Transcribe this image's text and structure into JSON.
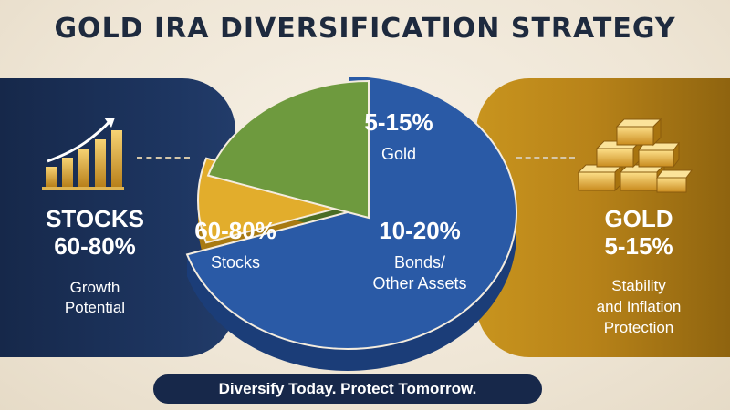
{
  "title": "GOLD IRA DIVERSIFICATION STRATEGY",
  "left_panel": {
    "title_line1": "STOCKS",
    "title_line2": "60-80%",
    "sub_line1": "Growth",
    "sub_line2": "Potential"
  },
  "right_panel": {
    "title_line1": "GOLD",
    "title_line2": "5-15%",
    "sub_line1": "Stability",
    "sub_line2": "and Inflation",
    "sub_line3": "Protection"
  },
  "banner": "Diversify Today. Protect Tomorrow.",
  "icons": {
    "left": "rising-bar-chart-icon",
    "right": "gold-bars-icon"
  },
  "colors": {
    "navy": "#17284a",
    "gold": "#c8941e",
    "stocks": "#2a5aa6",
    "gold_slice": "#e2ad2c",
    "bonds": "#6e9a3e"
  },
  "chart_data": {
    "type": "pie",
    "slices": [
      {
        "label": "Stocks",
        "range": "60-80%",
        "value": 70,
        "color": "#2a5aa6"
      },
      {
        "label": "Gold",
        "range": "5-15%",
        "value": 10,
        "color": "#e2ad2c"
      },
      {
        "label": "Bonds/ Other Assets",
        "range": "10-20%",
        "value": 20,
        "color": "#6e9a3e"
      }
    ]
  }
}
